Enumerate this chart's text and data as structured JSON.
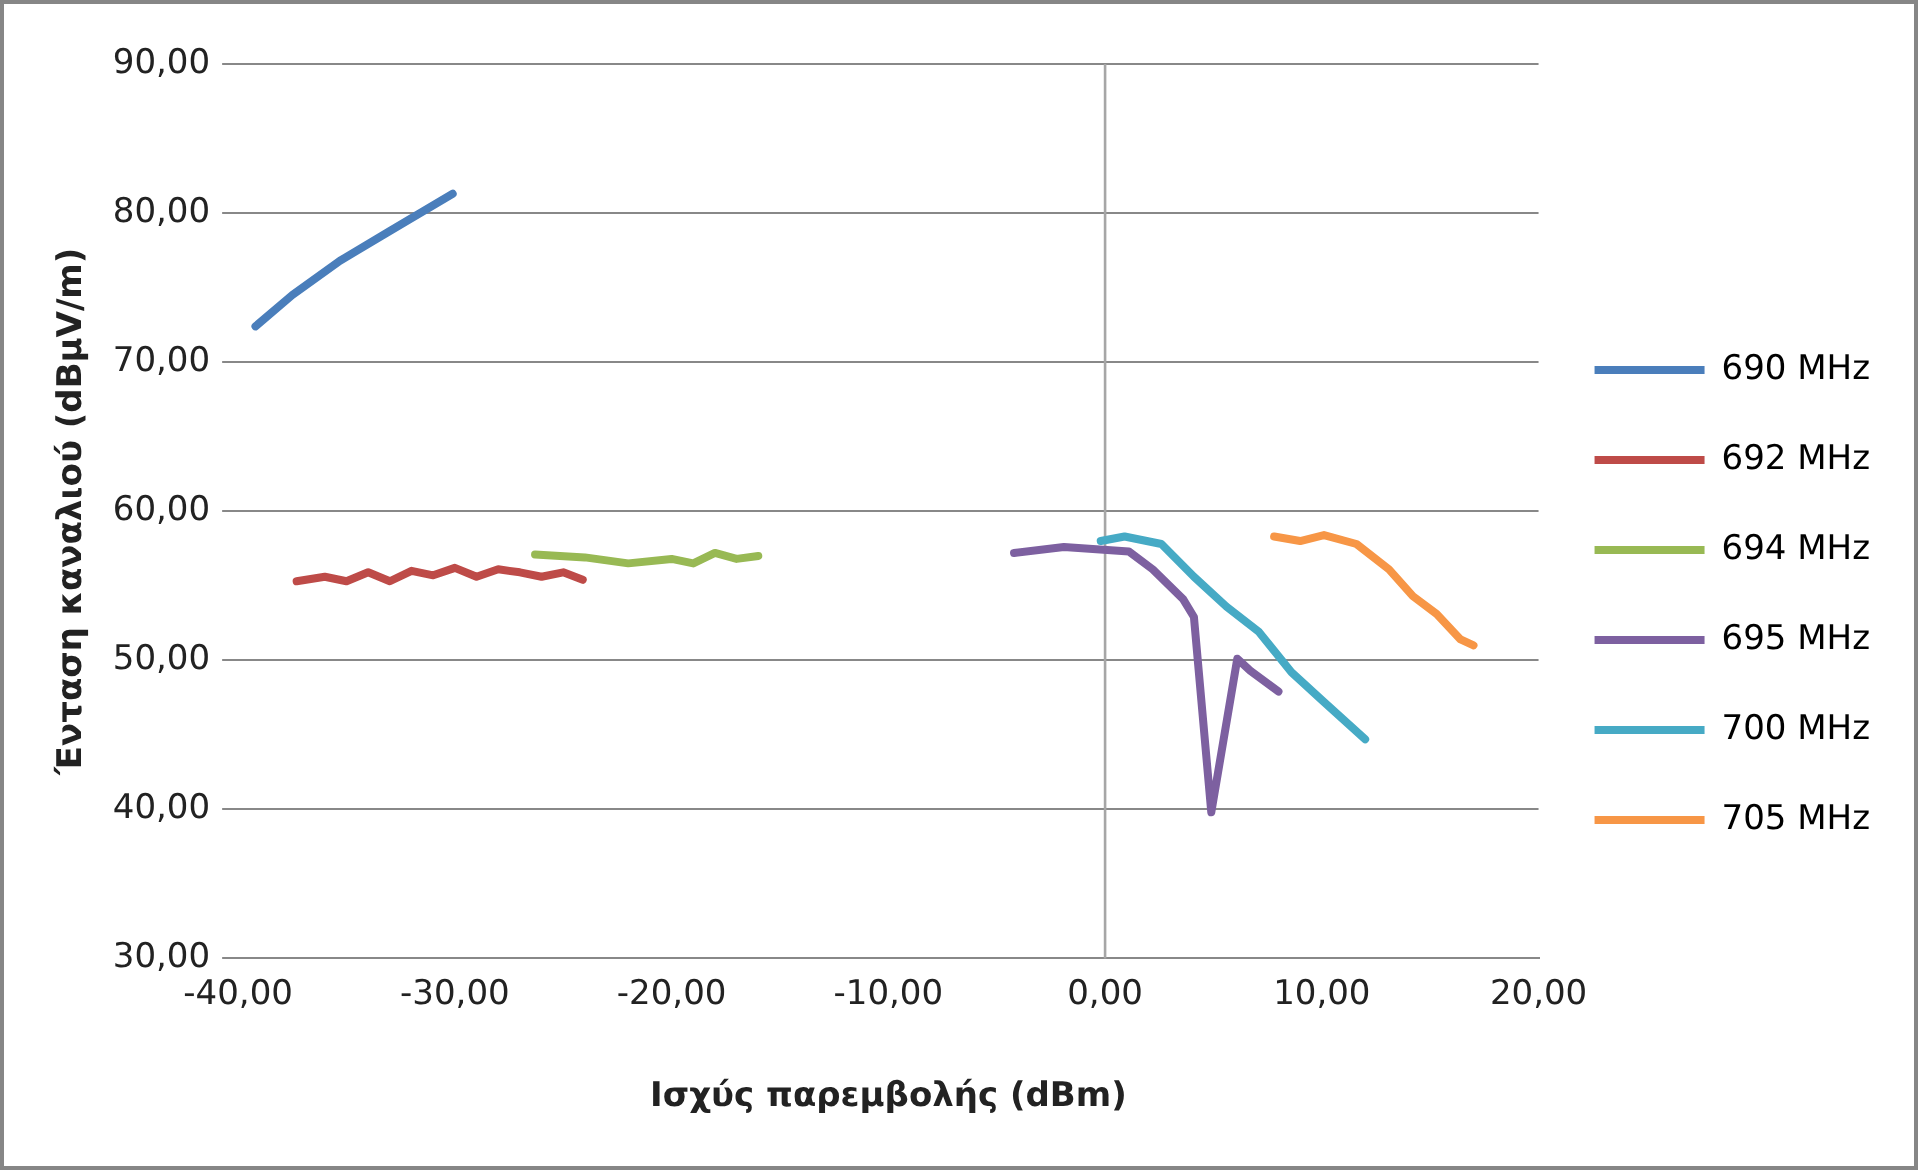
{
  "chart_data": {
    "type": "line",
    "xlabel": "Ισχύς παρεμβολής (dBm)",
    "ylabel": "Ένταση καναλιού (dBμV/m)",
    "xlim": [
      -40,
      20
    ],
    "ylim": [
      30,
      90
    ],
    "xticks": [
      {
        "value": -40,
        "label": "-40,00"
      },
      {
        "value": -30,
        "label": "-30,00"
      },
      {
        "value": -20,
        "label": "-20,00"
      },
      {
        "value": -10,
        "label": "-10,00"
      },
      {
        "value": 0,
        "label": "0,00"
      },
      {
        "value": 10,
        "label": "10,00"
      },
      {
        "value": 20,
        "label": "20,00"
      }
    ],
    "yticks": [
      {
        "value": 30,
        "label": "30,00"
      },
      {
        "value": 40,
        "label": "40,00"
      },
      {
        "value": 50,
        "label": "50,00"
      },
      {
        "value": 60,
        "label": "60,00"
      },
      {
        "value": 70,
        "label": "70,00"
      },
      {
        "value": 80,
        "label": "80,00"
      },
      {
        "value": 90,
        "label": "90,00"
      }
    ],
    "grid": "y",
    "legend": "right",
    "marker": "none",
    "line_style": "solid",
    "ref_lines": [
      {
        "axis": "x",
        "value": 0,
        "color": "#a6a6a6"
      }
    ],
    "series": [
      {
        "name": "690 MHz",
        "color": "#4a7ebb",
        "x": [
          -39.2,
          -37.5,
          -35.3,
          -33,
          -30.1
        ],
        "values": [
          72.4,
          74.5,
          76.8,
          78.8,
          81.3
        ]
      },
      {
        "name": "692 MHz",
        "color": "#be4b48",
        "x": [
          -37.3,
          -36,
          -35,
          -34,
          -33,
          -32,
          -31,
          -30,
          -29,
          -28,
          -27,
          -26,
          -25,
          -24.1
        ],
        "values": [
          55.3,
          55.6,
          55.3,
          55.9,
          55.3,
          56,
          55.7,
          56.2,
          55.6,
          56.1,
          55.9,
          55.6,
          55.9,
          55.4
        ]
      },
      {
        "name": "694 MHz",
        "color": "#98b954",
        "x": [
          -26.3,
          -24,
          -22,
          -20,
          -19,
          -18,
          -17,
          -16
        ],
        "values": [
          57.1,
          56.9,
          56.5,
          56.8,
          56.5,
          57.2,
          56.8,
          57
        ]
      },
      {
        "name": "695 MHz",
        "color": "#7d60a0",
        "x": [
          -4.2,
          -1.9,
          1.1,
          2.2,
          3.6,
          4.1,
          4.9,
          6.1,
          6.7,
          8
        ],
        "values": [
          57.2,
          57.6,
          57.3,
          56.1,
          54.1,
          52.9,
          39.8,
          50.1,
          49.3,
          47.9
        ]
      },
      {
        "name": "700 MHz",
        "color": "#46aac5",
        "x": [
          -0.2,
          0.9,
          2.6,
          4.1,
          5.6,
          7.1,
          8.6,
          10.1,
          12
        ],
        "values": [
          58,
          58.3,
          57.8,
          55.6,
          53.6,
          51.9,
          49.2,
          47.2,
          44.7
        ]
      },
      {
        "name": "705 MHz",
        "color": "#f79646",
        "x": [
          7.8,
          9,
          10.1,
          11.6,
          13.1,
          14.2,
          15.3,
          16.4,
          17
        ],
        "values": [
          58.3,
          58,
          58.4,
          57.8,
          56.1,
          54.3,
          53.1,
          51.4,
          51
        ]
      }
    ]
  }
}
